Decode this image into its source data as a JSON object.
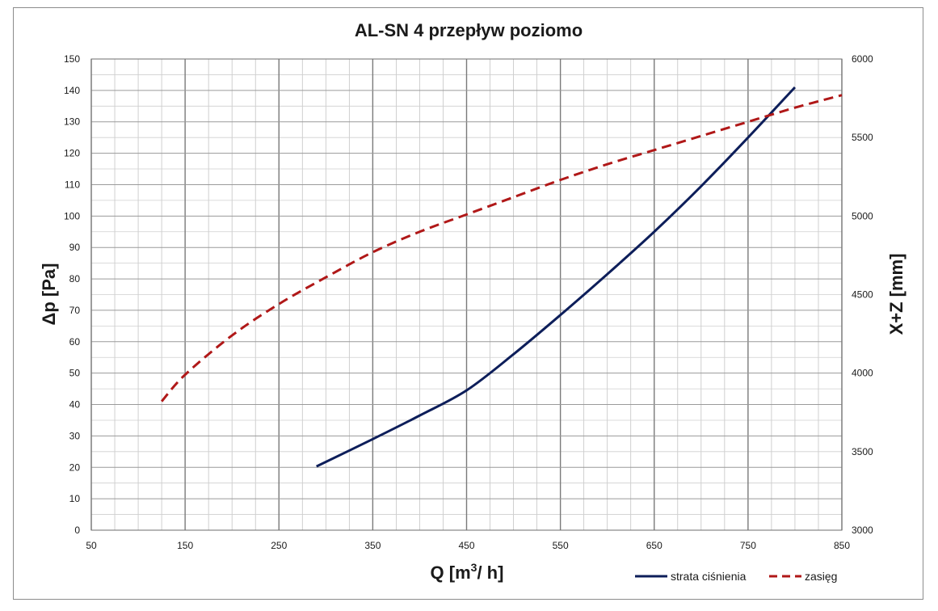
{
  "chart_data": {
    "type": "line",
    "title": "AL-SN 4 przepływ poziomo",
    "xlabel_main": "Q [m",
    "xlabel_sup": "3",
    "xlabel_tail": "/ h]",
    "ylabel_left": "Δp [Pa]",
    "ylabel_right": "X+Z [mm]",
    "xlim": [
      50,
      850
    ],
    "ylim_left": [
      0,
      150
    ],
    "ylim_right": [
      3000,
      6000
    ],
    "x_ticks": [
      50,
      150,
      250,
      350,
      450,
      550,
      650,
      750,
      850
    ],
    "y_left_ticks": [
      0,
      10,
      20,
      30,
      40,
      50,
      60,
      70,
      80,
      90,
      100,
      110,
      120,
      130,
      140,
      150
    ],
    "y_right_ticks": [
      3000,
      3500,
      4000,
      4500,
      5000,
      5500,
      6000
    ],
    "grid": true,
    "legend_position": "bottom-right",
    "series": [
      {
        "name": "strata ciśnienia",
        "axis": "left",
        "color": "#0d1e5a",
        "dash": "solid",
        "x": [
          290,
          350,
          400,
          450,
          500,
          550,
          600,
          650,
          700,
          750,
          800
        ],
        "y": [
          20.3,
          29.0,
          36.5,
          44.5,
          56.0,
          68.5,
          81.5,
          95.0,
          109.5,
          125.0,
          141.0
        ]
      },
      {
        "name": "zasięg",
        "axis": "right",
        "color": "#b01818",
        "dash": "dashed",
        "x": [
          125,
          150,
          200,
          250,
          300,
          350,
          400,
          450,
          500,
          550,
          600,
          650,
          700,
          750,
          800,
          850
        ],
        "y": [
          3820,
          3990,
          4240,
          4440,
          4610,
          4770,
          4900,
          5010,
          5120,
          5230,
          5330,
          5420,
          5510,
          5600,
          5690,
          5770
        ]
      }
    ]
  }
}
